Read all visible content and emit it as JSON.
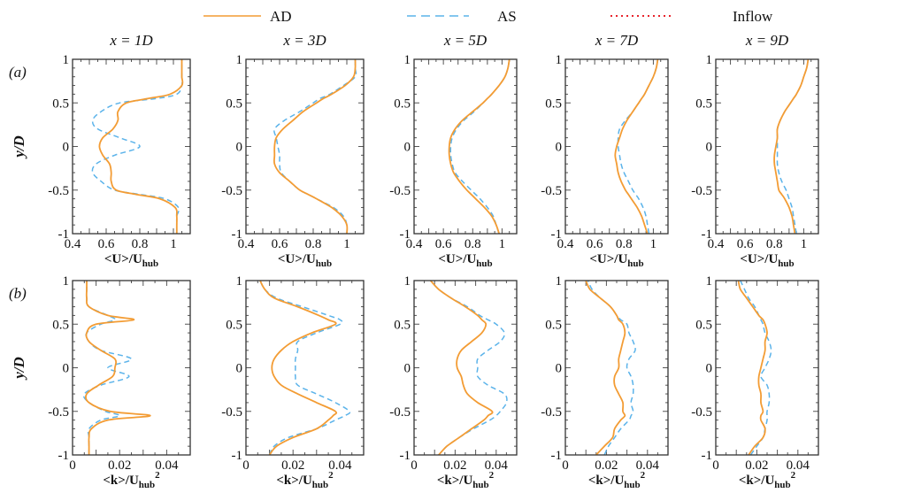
{
  "legend": [
    {
      "label": "AD",
      "color": "#f39c34",
      "style": "solid"
    },
    {
      "label": "AS",
      "color": "#5bb3ea",
      "style": "dashed"
    },
    {
      "label": "Inflow",
      "color": "#e8242c",
      "style": "dotted"
    }
  ],
  "row_labels": [
    "(a)",
    "(b)"
  ],
  "ylabel": "y/D",
  "chart_data": {
    "type": "line",
    "y_grid": [
      -1,
      -0.9,
      -0.8,
      -0.7,
      -0.6,
      -0.55,
      -0.5,
      -0.4,
      -0.3,
      -0.2,
      -0.1,
      0,
      0.1,
      0.2,
      0.3,
      0.4,
      0.5,
      0.55,
      0.6,
      0.7,
      0.8,
      0.9,
      1
    ],
    "ylim": [
      -1,
      1
    ],
    "yticks": [
      "1",
      "0.5",
      "0",
      "-0.5",
      "-1"
    ],
    "ytick_values": [
      1,
      0.5,
      0,
      -0.5,
      -1
    ],
    "columns": [
      "x = 1D",
      "x = 3D",
      "x = 5D",
      "x = 7D",
      "x = 9D"
    ],
    "rows": [
      {
        "label": "(a)",
        "xlabel": {
          "main": "<U>/U",
          "sub": "hub",
          "sup": ""
        },
        "xlim": [
          0.4,
          1.1
        ],
        "xticks": [
          "0.4",
          "0.6",
          "0.8",
          "1"
        ],
        "xtick_values": [
          0.4,
          0.6,
          0.8,
          1
        ],
        "panels": [
          {
            "AD": [
              1.02,
              1.02,
              1.02,
              1.01,
              0.92,
              0.78,
              0.66,
              0.63,
              0.63,
              0.62,
              0.58,
              0.56,
              0.58,
              0.64,
              0.67,
              0.67,
              0.72,
              0.85,
              0.98,
              1.05,
              1.05,
              1.05,
              1.05
            ],
            "AS": [
              1.02,
              1.02,
              1.02,
              1.03,
              0.95,
              0.8,
              0.65,
              0.57,
              0.52,
              0.54,
              0.65,
              0.8,
              0.68,
              0.55,
              0.52,
              0.57,
              0.68,
              0.9,
              1.02,
              1.05,
              1.05,
              1.05,
              1.05
            ]
          },
          {
            "AD": [
              1.0,
              1.0,
              0.97,
              0.91,
              0.82,
              0.77,
              0.72,
              0.66,
              0.6,
              0.57,
              0.57,
              0.57,
              0.58,
              0.62,
              0.68,
              0.74,
              0.82,
              0.86,
              0.91,
              0.99,
              1.04,
              1.05,
              1.05
            ],
            "AS": [
              1.0,
              1.0,
              0.98,
              0.92,
              0.82,
              0.77,
              0.72,
              0.66,
              0.61,
              0.6,
              0.6,
              0.59,
              0.58,
              0.57,
              0.63,
              0.72,
              0.8,
              0.84,
              0.9,
              0.98,
              1.05,
              1.05,
              1.05
            ]
          },
          {
            "AD": [
              0.98,
              0.96,
              0.93,
              0.88,
              0.82,
              0.79,
              0.76,
              0.71,
              0.67,
              0.65,
              0.64,
              0.64,
              0.65,
              0.68,
              0.73,
              0.8,
              0.87,
              0.9,
              0.93,
              0.98,
              1.02,
              1.04,
              1.05
            ],
            "AS": [
              0.98,
              0.96,
              0.94,
              0.9,
              0.85,
              0.82,
              0.79,
              0.73,
              0.68,
              0.66,
              0.65,
              0.65,
              0.66,
              0.69,
              0.74,
              0.81,
              0.87,
              0.9,
              0.93,
              0.98,
              1.02,
              1.04,
              1.05
            ]
          },
          {
            "AD": [
              0.96,
              0.94,
              0.92,
              0.89,
              0.85,
              0.83,
              0.81,
              0.78,
              0.76,
              0.75,
              0.74,
              0.75,
              0.77,
              0.79,
              0.82,
              0.86,
              0.9,
              0.92,
              0.94,
              0.97,
              1.0,
              1.02,
              1.03
            ],
            "AS": [
              0.97,
              0.96,
              0.95,
              0.93,
              0.9,
              0.88,
              0.86,
              0.83,
              0.8,
              0.78,
              0.77,
              0.76,
              0.76,
              0.77,
              0.81,
              0.86,
              0.9,
              0.92,
              0.94,
              0.97,
              1.0,
              1.02,
              1.03
            ]
          },
          {
            "AD": [
              0.94,
              0.93,
              0.92,
              0.9,
              0.87,
              0.85,
              0.83,
              0.82,
              0.81,
              0.8,
              0.8,
              0.81,
              0.82,
              0.82,
              0.84,
              0.87,
              0.91,
              0.93,
              0.95,
              0.98,
              1.0,
              1.02,
              1.03
            ],
            "AS": [
              0.95,
              0.94,
              0.93,
              0.92,
              0.9,
              0.89,
              0.88,
              0.85,
              0.83,
              0.82,
              0.82,
              0.82,
              0.82,
              0.82,
              0.84,
              0.87,
              0.91,
              0.93,
              0.95,
              0.98,
              1.0,
              1.02,
              1.03
            ]
          }
        ]
      },
      {
        "label": "(b)",
        "xlabel": {
          "main": "<k>/U",
          "sub": "hub",
          "sup": "2"
        },
        "xlim": [
          0,
          0.05
        ],
        "xticks": [
          "0",
          "0.02",
          "0.04"
        ],
        "xtick_values": [
          0,
          0.02,
          0.04
        ],
        "panels": [
          {
            "AD": [
              0.007,
              0.007,
              0.007,
              0.008,
              0.015,
              0.033,
              0.016,
              0.007,
              0.006,
              0.011,
              0.017,
              0.018,
              0.018,
              0.012,
              0.007,
              0.006,
              0.01,
              0.026,
              0.015,
              0.007,
              0.006,
              0.006,
              0.006
            ],
            "AS": [
              0.007,
              0.007,
              0.007,
              0.007,
              0.012,
              0.02,
              0.014,
              0.007,
              0.005,
              0.012,
              0.024,
              0.015,
              0.025,
              0.012,
              0.007,
              0.006,
              0.012,
              0.018,
              0.015,
              0.007,
              0.006,
              0.006,
              0.006
            ]
          },
          {
            "AD": [
              0.01,
              0.013,
              0.02,
              0.03,
              0.035,
              0.037,
              0.038,
              0.03,
              0.022,
              0.015,
              0.012,
              0.011,
              0.012,
              0.015,
              0.02,
              0.028,
              0.038,
              0.035,
              0.031,
              0.022,
              0.012,
              0.008,
              0.006
            ],
            "AS": [
              0.01,
              0.012,
              0.018,
              0.03,
              0.038,
              0.042,
              0.044,
              0.038,
              0.03,
              0.022,
              0.021,
              0.021,
              0.021,
              0.022,
              0.022,
              0.03,
              0.04,
              0.04,
              0.035,
              0.024,
              0.013,
              0.008,
              0.006
            ]
          },
          {
            "AD": [
              0.012,
              0.016,
              0.022,
              0.028,
              0.034,
              0.036,
              0.038,
              0.031,
              0.026,
              0.024,
              0.023,
              0.021,
              0.021,
              0.023,
              0.028,
              0.033,
              0.035,
              0.033,
              0.031,
              0.025,
              0.018,
              0.012,
              0.008
            ],
            "AS": [
              0.012,
              0.016,
              0.022,
              0.029,
              0.037,
              0.04,
              0.042,
              0.045,
              0.044,
              0.036,
              0.031,
              0.031,
              0.031,
              0.036,
              0.042,
              0.044,
              0.04,
              0.036,
              0.032,
              0.026,
              0.018,
              0.012,
              0.008
            ]
          },
          {
            "AD": [
              0.015,
              0.019,
              0.023,
              0.024,
              0.027,
              0.029,
              0.028,
              0.028,
              0.026,
              0.024,
              0.024,
              0.026,
              0.026,
              0.027,
              0.028,
              0.029,
              0.028,
              0.026,
              0.025,
              0.022,
              0.017,
              0.012,
              0.01
            ],
            "AS": [
              0.019,
              0.021,
              0.024,
              0.027,
              0.031,
              0.032,
              0.033,
              0.032,
              0.033,
              0.033,
              0.032,
              0.03,
              0.031,
              0.034,
              0.033,
              0.031,
              0.03,
              0.027,
              0.025,
              0.022,
              0.017,
              0.013,
              0.011
            ]
          },
          {
            "AD": [
              0.016,
              0.019,
              0.023,
              0.024,
              0.022,
              0.022,
              0.023,
              0.022,
              0.022,
              0.021,
              0.021,
              0.022,
              0.023,
              0.024,
              0.024,
              0.025,
              0.024,
              0.023,
              0.021,
              0.018,
              0.015,
              0.012,
              0.011
            ],
            "AS": [
              0.017,
              0.02,
              0.023,
              0.024,
              0.025,
              0.025,
              0.025,
              0.026,
              0.026,
              0.025,
              0.022,
              0.024,
              0.026,
              0.027,
              0.026,
              0.024,
              0.023,
              0.022,
              0.021,
              0.019,
              0.016,
              0.014,
              0.012
            ]
          }
        ]
      }
    ]
  }
}
